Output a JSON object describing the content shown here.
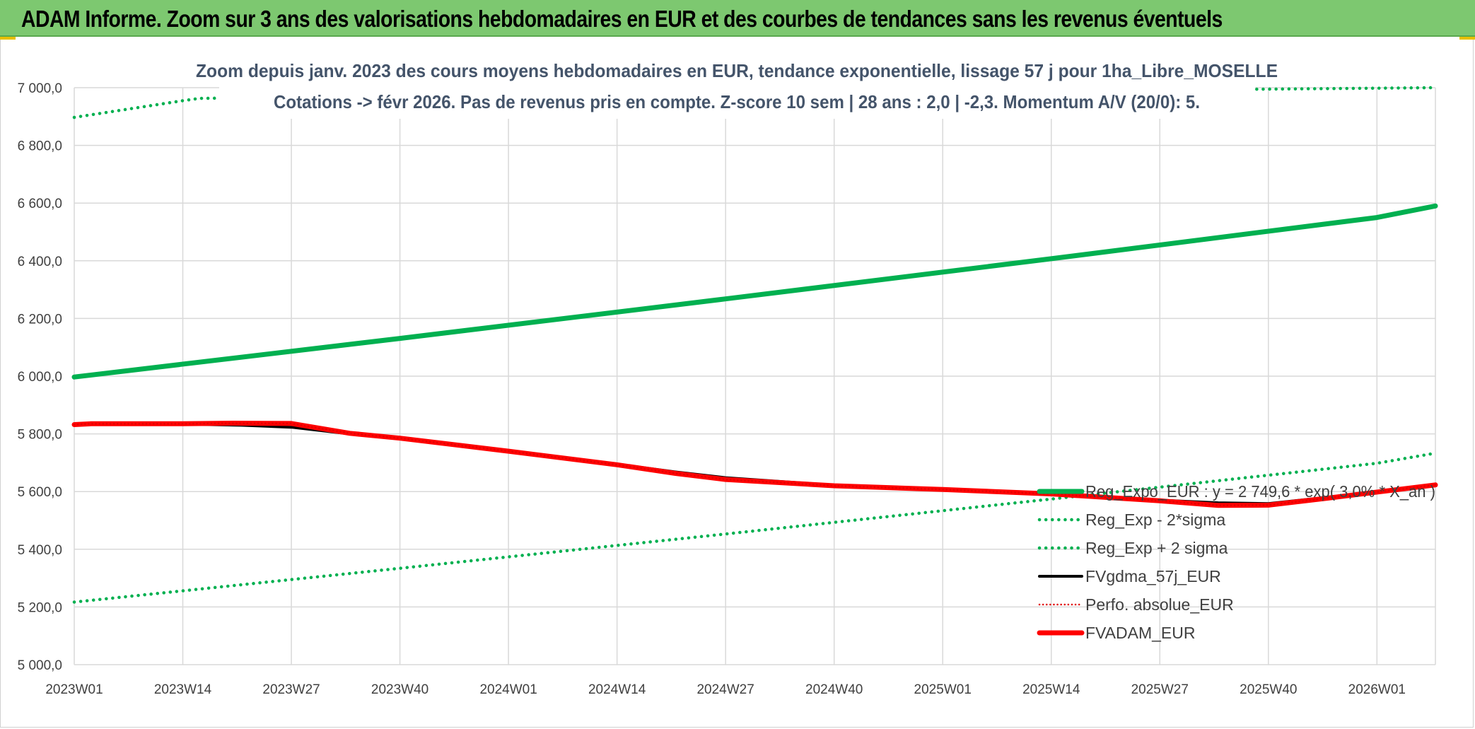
{
  "header": {
    "title": "ADAM Informe. Zoom sur 3 ans des valorisations hebdomadaires en EUR et des courbes de tendances sans les revenus éventuels"
  },
  "colors": {
    "header_bg": "#7dc870",
    "regression": "#00b050",
    "fvgdma": "#000000",
    "perfo": "#e00000",
    "fvadam": "#ff0000",
    "grid": "#d9d9d9"
  },
  "chart_data": {
    "type": "line",
    "title_lines": [
      "Zoom depuis janv. 2023 des cours moyens hebdomadaires en EUR, tendance exponentielle, lissage 57 j pour 1ha_Libre_MOSELLE",
      "Cotations -> févr 2026. Pas de revenus pris en compte. Z-score 10 sem | 28 ans : 2,0 | -2,3. Momentum A/V (20/0): 5."
    ],
    "ylim": [
      5000,
      7000
    ],
    "y_ticks": [
      "5 000,0",
      "5 200,0",
      "5 400,0",
      "5 600,0",
      "5 800,0",
      "6 000,0",
      "6 200,0",
      "6 400,0",
      "6 600,0",
      "6 800,0",
      "7 000,0"
    ],
    "x_ticks": [
      "2023W01",
      "2023W14",
      "2023W27",
      "2023W40",
      "2024W01",
      "2024W14",
      "2024W27",
      "2024W40",
      "2025W01",
      "2025W14",
      "2025W27",
      "2025W40",
      "2026W01"
    ],
    "x_range_weeks": [
      0,
      163
    ],
    "grid": true,
    "legend_position": "bottom-right",
    "series": [
      {
        "name": "Reg_Expo_EUR : y = 2 749,6 * exp( 3,0% * X_an )",
        "style": "solid-thick",
        "color": "#00b050",
        "points": [
          [
            0,
            5997
          ],
          [
            39,
            6131
          ],
          [
            78,
            6268
          ],
          [
            117,
            6407
          ],
          [
            156,
            6550
          ],
          [
            163,
            6590
          ]
        ]
      },
      {
        "name": "Reg_Exp - 2*sigma",
        "style": "dotted",
        "color": "#00b050",
        "points": [
          [
            0,
            5217
          ],
          [
            39,
            5334
          ],
          [
            78,
            5453
          ],
          [
            117,
            5574
          ],
          [
            156,
            5698
          ],
          [
            163,
            5733
          ]
        ]
      },
      {
        "name": "Reg_Exp + 2 sigma",
        "style": "dotted",
        "color": "#00b050",
        "points": [
          [
            0,
            6897
          ],
          [
            13,
            6955
          ],
          [
            15,
            6963
          ],
          [
            163,
            7000
          ]
        ]
      },
      {
        "name": "FVgdma_57j_EUR",
        "style": "solid",
        "color": "#000000",
        "points": [
          [
            0,
            5832
          ],
          [
            2,
            5835
          ],
          [
            13,
            5834
          ],
          [
            20,
            5830
          ],
          [
            26,
            5823
          ],
          [
            33,
            5800
          ],
          [
            39,
            5785
          ],
          [
            52,
            5740
          ],
          [
            65,
            5695
          ],
          [
            72,
            5668
          ],
          [
            78,
            5648
          ],
          [
            91,
            5622
          ],
          [
            104,
            5608
          ],
          [
            117,
            5592
          ],
          [
            130,
            5570
          ],
          [
            137,
            5561
          ],
          [
            143,
            5558
          ],
          [
            150,
            5580
          ],
          [
            163,
            5625
          ]
        ]
      },
      {
        "name": "Perfo. absolue_EUR",
        "style": "dotted-thin",
        "color": "#e00000",
        "points": [
          [
            0,
            5832
          ],
          [
            2,
            5835
          ],
          [
            13,
            5835
          ],
          [
            19,
            5837
          ],
          [
            26,
            5836
          ],
          [
            33,
            5802
          ],
          [
            39,
            5785
          ],
          [
            52,
            5740
          ],
          [
            65,
            5693
          ],
          [
            72,
            5663
          ],
          [
            78,
            5642
          ],
          [
            91,
            5620
          ],
          [
            104,
            5607
          ],
          [
            117,
            5592
          ],
          [
            130,
            5568
          ],
          [
            137,
            5552
          ],
          [
            143,
            5553
          ],
          [
            150,
            5577
          ],
          [
            163,
            5623
          ]
        ]
      },
      {
        "name": "FVADAM_EUR",
        "style": "solid-thick",
        "color": "#ff0000",
        "points": [
          [
            0,
            5832
          ],
          [
            2,
            5835
          ],
          [
            13,
            5835
          ],
          [
            19,
            5837
          ],
          [
            26,
            5836
          ],
          [
            33,
            5802
          ],
          [
            39,
            5785
          ],
          [
            52,
            5740
          ],
          [
            65,
            5693
          ],
          [
            72,
            5663
          ],
          [
            78,
            5642
          ],
          [
            91,
            5620
          ],
          [
            104,
            5607
          ],
          [
            117,
            5592
          ],
          [
            130,
            5568
          ],
          [
            137,
            5552
          ],
          [
            143,
            5553
          ],
          [
            150,
            5577
          ],
          [
            163,
            5623
          ]
        ]
      }
    ]
  }
}
